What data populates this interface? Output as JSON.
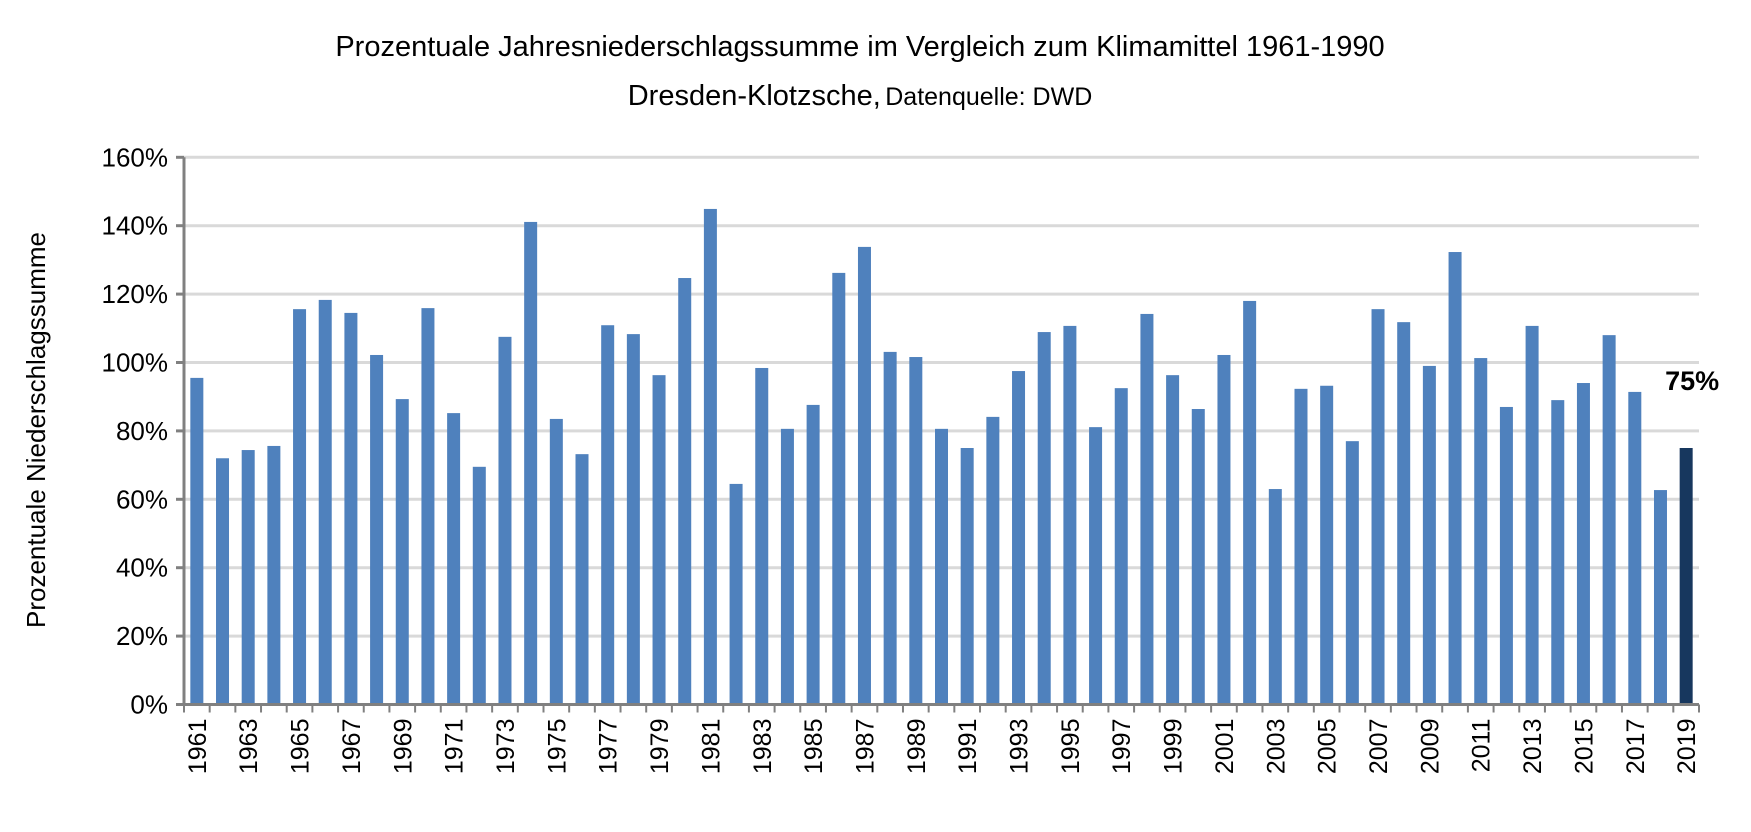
{
  "chart_data": {
    "type": "bar",
    "title": "Prozentuale Jahresniederschlagssumme im Vergleich zum Klimamittel 1961-1990",
    "subtitle_main": "Dresden-Klotzsche,",
    "subtitle_source": "Datenquelle: DWD",
    "xlabel": "",
    "ylabel": "Prozentuale Niederschlagssumme",
    "ylim": [
      0,
      160
    ],
    "yticks": [
      0,
      20,
      40,
      60,
      80,
      100,
      120,
      140,
      160
    ],
    "ytick_labels": [
      "0%",
      "20%",
      "40%",
      "60%",
      "80%",
      "100%",
      "120%",
      "140%",
      "160%"
    ],
    "grid": true,
    "categories": [
      1961,
      1962,
      1963,
      1964,
      1965,
      1966,
      1967,
      1968,
      1969,
      1970,
      1971,
      1972,
      1973,
      1974,
      1975,
      1976,
      1977,
      1978,
      1979,
      1980,
      1981,
      1982,
      1983,
      1984,
      1985,
      1986,
      1987,
      1988,
      1989,
      1990,
      1991,
      1992,
      1993,
      1994,
      1995,
      1996,
      1997,
      1998,
      1999,
      2000,
      2001,
      2002,
      2003,
      2004,
      2005,
      2006,
      2007,
      2008,
      2009,
      2010,
      2011,
      2012,
      2013,
      2014,
      2015,
      2016,
      2017,
      2018,
      2019
    ],
    "values": [
      95.5,
      72,
      74.4,
      75.6,
      115.6,
      118.3,
      114.5,
      102.2,
      89.3,
      115.9,
      85.2,
      69.5,
      107.5,
      141.1,
      83.5,
      73.2,
      110.9,
      108.3,
      96.3,
      124.7,
      144.9,
      64.5,
      98.4,
      80.6,
      87.6,
      126.2,
      133.8,
      103.1,
      101.6,
      80.6,
      75,
      84.1,
      97.5,
      108.9,
      110.7,
      81.1,
      92.5,
      114.2,
      96.3,
      86.4,
      102.2,
      118,
      63,
      92.3,
      93.2,
      77,
      115.6,
      111.8,
      99,
      132.3,
      101.3,
      87,
      110.7,
      89,
      94,
      108,
      91.4,
      62.7,
      75
    ],
    "highlight": {
      "category": 2019,
      "label": "75%"
    },
    "colors": {
      "bar": "#4f81bd",
      "highlight": "#17375e",
      "grid": "#d9d9d9",
      "axis": "#808080"
    }
  }
}
